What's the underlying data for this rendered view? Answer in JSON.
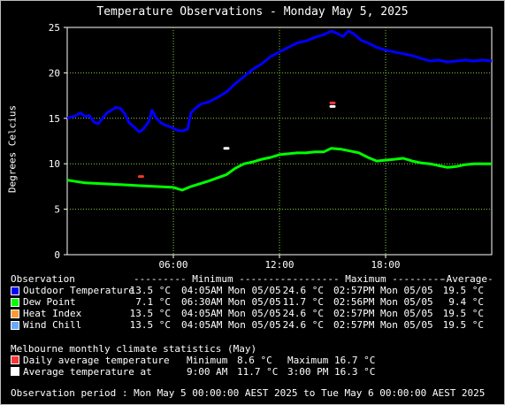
{
  "title": "Temperature Observations - Monday May 5, 2025",
  "chart_data": {
    "type": "line",
    "title": "Temperature Observations - Monday May 5, 2025",
    "ylabel": "Degrees Celcius",
    "xlabel": "",
    "x_unit": "hour",
    "xlim": [
      0,
      24
    ],
    "ylim": [
      0,
      25
    ],
    "x_ticks": [
      {
        "x": 6,
        "label": "06:00"
      },
      {
        "x": 12,
        "label": "12:00"
      },
      {
        "x": 18,
        "label": "18:00"
      }
    ],
    "y_ticks": [
      0,
      5,
      10,
      15,
      20,
      25
    ],
    "grid": true,
    "series": [
      {
        "name": "Outdoor Temperature",
        "color": "#0000ff",
        "points": [
          [
            0,
            15.0
          ],
          [
            0.5,
            15.3
          ],
          [
            0.75,
            15.6
          ],
          [
            1.0,
            15.2
          ],
          [
            1.25,
            15.3
          ],
          [
            1.5,
            14.6
          ],
          [
            1.75,
            14.4
          ],
          [
            2.0,
            15.0
          ],
          [
            2.25,
            15.6
          ],
          [
            2.5,
            15.9
          ],
          [
            2.75,
            16.2
          ],
          [
            3.0,
            16.1
          ],
          [
            3.25,
            15.5
          ],
          [
            3.5,
            14.5
          ],
          [
            3.75,
            14.1
          ],
          [
            4.07,
            13.5
          ],
          [
            4.3,
            13.8
          ],
          [
            4.6,
            14.6
          ],
          [
            4.8,
            15.9
          ],
          [
            5.0,
            15.1
          ],
          [
            5.3,
            14.5
          ],
          [
            5.6,
            14.2
          ],
          [
            5.9,
            14.0
          ],
          [
            6.2,
            13.7
          ],
          [
            6.5,
            13.6
          ],
          [
            6.8,
            13.8
          ],
          [
            7.0,
            15.6
          ],
          [
            7.3,
            16.2
          ],
          [
            7.6,
            16.6
          ],
          [
            8.0,
            16.8
          ],
          [
            8.5,
            17.3
          ],
          [
            9.0,
            17.9
          ],
          [
            9.5,
            18.8
          ],
          [
            10.0,
            19.6
          ],
          [
            10.5,
            20.4
          ],
          [
            11.0,
            21.0
          ],
          [
            11.5,
            21.8
          ],
          [
            12.0,
            22.3
          ],
          [
            12.5,
            22.8
          ],
          [
            13.0,
            23.3
          ],
          [
            13.5,
            23.5
          ],
          [
            14.0,
            23.9
          ],
          [
            14.5,
            24.2
          ],
          [
            14.95,
            24.6
          ],
          [
            15.3,
            24.3
          ],
          [
            15.6,
            24.0
          ],
          [
            15.9,
            24.6
          ],
          [
            16.2,
            24.3
          ],
          [
            16.6,
            23.6
          ],
          [
            17.0,
            23.3
          ],
          [
            17.5,
            22.8
          ],
          [
            18.0,
            22.5
          ],
          [
            18.5,
            22.3
          ],
          [
            19.0,
            22.1
          ],
          [
            19.5,
            21.9
          ],
          [
            20.0,
            21.6
          ],
          [
            20.5,
            21.3
          ],
          [
            21.0,
            21.4
          ],
          [
            21.5,
            21.2
          ],
          [
            22.0,
            21.3
          ],
          [
            22.5,
            21.4
          ],
          [
            23.0,
            21.3
          ],
          [
            23.5,
            21.4
          ],
          [
            24.0,
            21.3
          ]
        ]
      },
      {
        "name": "Dew Point",
        "color": "#00ff00",
        "points": [
          [
            0,
            8.2
          ],
          [
            1.0,
            7.9
          ],
          [
            2.0,
            7.8
          ],
          [
            3.0,
            7.7
          ],
          [
            4.0,
            7.6
          ],
          [
            5.0,
            7.5
          ],
          [
            6.0,
            7.4
          ],
          [
            6.5,
            7.1
          ],
          [
            7.0,
            7.5
          ],
          [
            8.0,
            8.1
          ],
          [
            9.0,
            8.8
          ],
          [
            9.5,
            9.5
          ],
          [
            10.0,
            10.0
          ],
          [
            10.5,
            10.2
          ],
          [
            11.0,
            10.5
          ],
          [
            11.5,
            10.7
          ],
          [
            12.0,
            11.0
          ],
          [
            12.5,
            11.1
          ],
          [
            13.0,
            11.2
          ],
          [
            13.5,
            11.2
          ],
          [
            14.0,
            11.3
          ],
          [
            14.5,
            11.3
          ],
          [
            14.93,
            11.7
          ],
          [
            15.5,
            11.6
          ],
          [
            16.0,
            11.4
          ],
          [
            16.5,
            11.2
          ],
          [
            17.0,
            10.7
          ],
          [
            17.5,
            10.3
          ],
          [
            18.0,
            10.4
          ],
          [
            18.5,
            10.5
          ],
          [
            19.0,
            10.6
          ],
          [
            19.5,
            10.3
          ],
          [
            20.0,
            10.1
          ],
          [
            20.5,
            10.0
          ],
          [
            21.0,
            9.8
          ],
          [
            21.5,
            9.6
          ],
          [
            22.0,
            9.7
          ],
          [
            22.5,
            9.9
          ],
          [
            23.0,
            10.0
          ],
          [
            23.5,
            10.0
          ],
          [
            24.0,
            10.0
          ]
        ]
      },
      {
        "name": "Heat Index",
        "color": "#ff9933",
        "points": []
      },
      {
        "name": "Wind Chill",
        "color": "#66aaff",
        "points": []
      }
    ],
    "markers": [
      {
        "name": "Daily average temperature Minimum",
        "x": 4.17,
        "y": 8.6,
        "color": "#ff3333"
      },
      {
        "name": "Daily average temperature Maximum",
        "x": 15.0,
        "y": 16.7,
        "color": "#ff3333"
      },
      {
        "name": "Average temperature at 9:00 AM",
        "x": 9.0,
        "y": 11.7,
        "color": "#ffffff"
      },
      {
        "name": "Average temperature at 3:00 PM",
        "x": 15.0,
        "y": 16.3,
        "color": "#ffffff"
      }
    ]
  },
  "table": {
    "headers": [
      "Observation",
      "--------- Minimum ---------",
      "--------- Maximum ---------",
      "-Average-"
    ],
    "rows": [
      {
        "label": "Outdoor Temperature",
        "color": "#0000ff",
        "min": "13.5 °C",
        "min_time": "04:05AM Mon 05/05",
        "max": "24.6 °C",
        "max_time": "02:57PM Mon 05/05",
        "avg": "19.5 °C"
      },
      {
        "label": "Dew Point",
        "color": "#00ff00",
        "min": "7.1 °C",
        "min_time": "06:30AM Mon 05/05",
        "max": "11.7 °C",
        "max_time": "02:56PM Mon 05/05",
        "avg": "9.4 °C"
      },
      {
        "label": "Heat Index",
        "color": "#ff9933",
        "min": "13.5 °C",
        "min_time": "04:05AM Mon 05/05",
        "max": "24.6 °C",
        "max_time": "02:57PM Mon 05/05",
        "avg": "19.5 °C"
      },
      {
        "label": "Wind Chill",
        "color": "#66aaff",
        "min": "13.5 °C",
        "min_time": "04:05AM Mon 05/05",
        "max": "24.6 °C",
        "max_time": "02:57PM Mon 05/05",
        "avg": "19.5 °C"
      }
    ]
  },
  "climate": {
    "heading": "Melbourne monthly climate statistics (May)",
    "daily_label": "Daily average temperature",
    "daily_color": "#ff3333",
    "min_label": "Minimum",
    "min_value": "8.6 °C",
    "max_label": "Maximum",
    "max_value": "16.7 °C",
    "avg_label": "Average temperature at",
    "avg_color": "#ffffff",
    "time1": "9:00 AM",
    "value1": "11.7 °C",
    "time2": "3:00 PM",
    "value2": "16.3 °C"
  },
  "period": "Observation period : Mon May 5 00:00:00 AEST 2025 to Tue May 6 00:00:00 AEST 2025"
}
